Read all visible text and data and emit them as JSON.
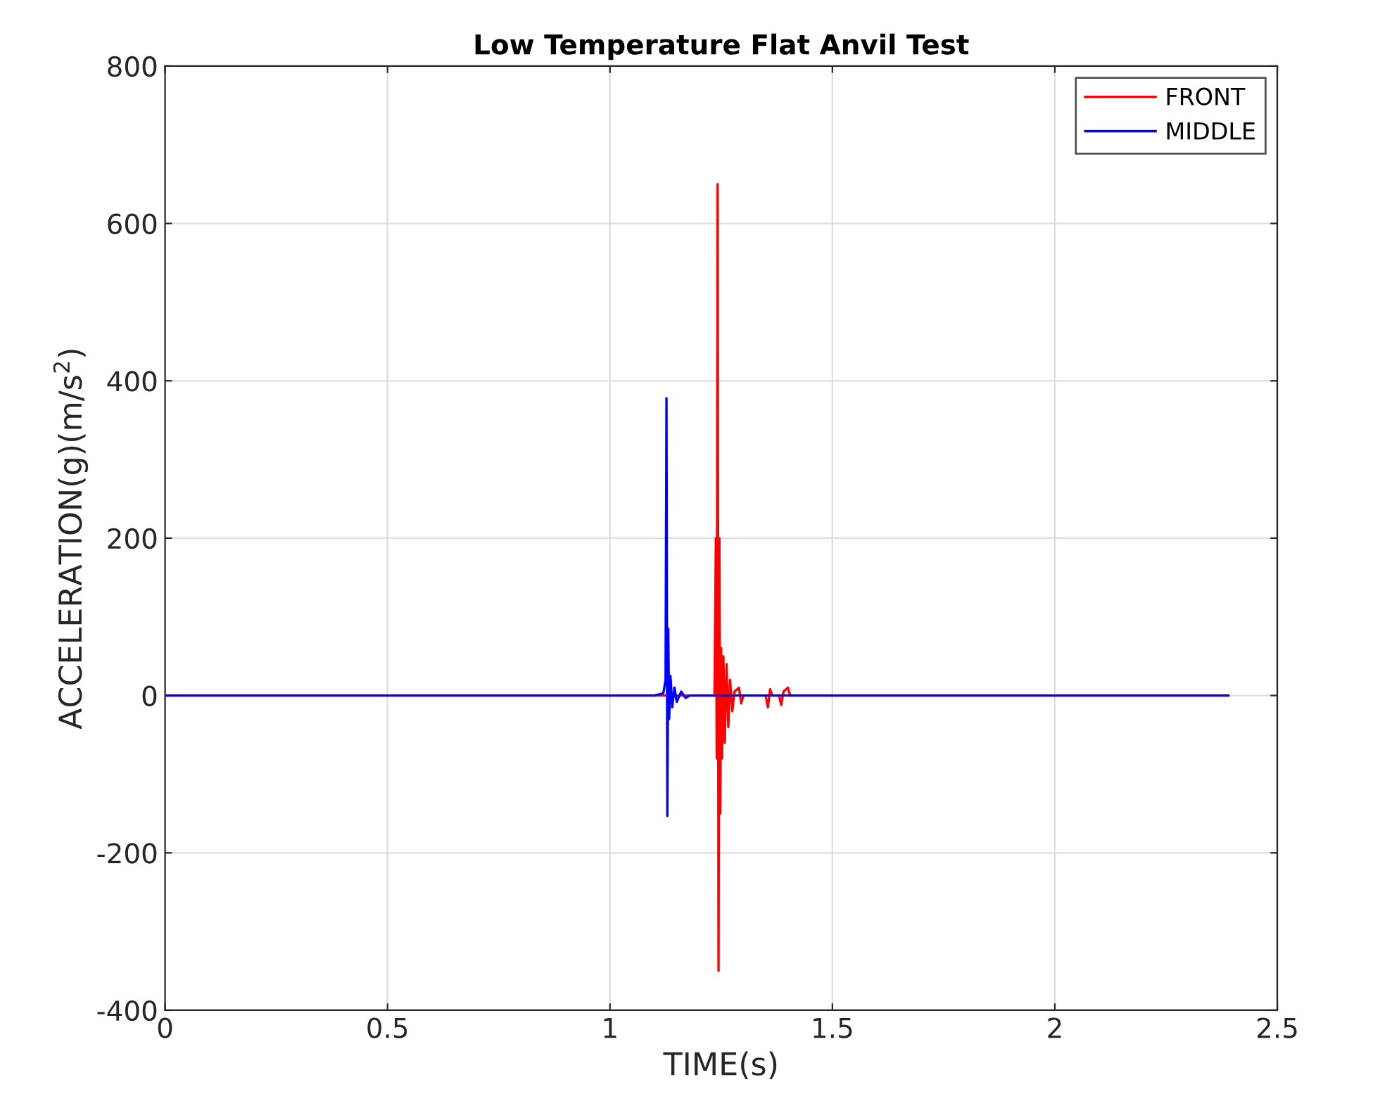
{
  "chart_data": {
    "type": "line",
    "title": "Low Temperature Flat Anvil Test",
    "xlabel": "TIME(s)",
    "ylabel": "ACCELERATION(g)(m/s$^{2}$)",
    "xlim": [
      0,
      2.5
    ],
    "xticks": [
      0,
      0.5,
      1,
      1.5,
      2,
      2.5
    ],
    "ylim": [
      -400,
      800
    ],
    "yticks": [
      -400,
      -200,
      0,
      200,
      400,
      600,
      800
    ],
    "grid": true,
    "legend": "top right",
    "marker": "none",
    "line_style": "solid",
    "series": [
      {
        "name": "FRONT",
        "color": "#ff0000",
        "x": [
          0,
          1.0,
          1.22,
          1.235,
          1.238,
          1.24,
          1.242,
          1.244,
          1.246,
          1.248,
          1.25,
          1.252,
          1.255,
          1.258,
          1.262,
          1.266,
          1.27,
          1.275,
          1.28,
          1.29,
          1.295,
          1.3,
          1.35,
          1.355,
          1.36,
          1.365,
          1.38,
          1.385,
          1.39,
          1.4,
          1.405,
          1.5,
          2.39
        ],
        "values": [
          0,
          0,
          0,
          0,
          200,
          -80,
          650,
          -350,
          200,
          -150,
          60,
          -80,
          50,
          -60,
          40,
          -40,
          20,
          -20,
          5,
          10,
          -10,
          0,
          0,
          -15,
          8,
          0,
          0,
          -12,
          5,
          10,
          0,
          0,
          0
        ]
      },
      {
        "name": "MIDDLE",
        "color": "#0000ff",
        "x": [
          0,
          1.1,
          1.12,
          1.125,
          1.127,
          1.129,
          1.131,
          1.133,
          1.136,
          1.14,
          1.145,
          1.15,
          1.16,
          1.17,
          1.18,
          2.39
        ],
        "values": [
          0,
          0,
          3,
          20,
          378,
          -153,
          85,
          -30,
          25,
          -15,
          10,
          -8,
          5,
          -3,
          0,
          0
        ]
      }
    ]
  }
}
